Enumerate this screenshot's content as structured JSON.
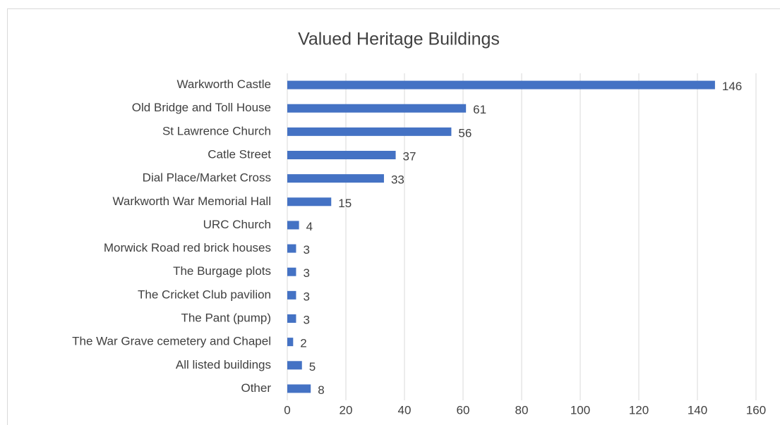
{
  "chart_data": {
    "type": "bar",
    "orientation": "horizontal",
    "title": "Valued Heritage Buildings",
    "categories": [
      "Warkworth Castle",
      "Old Bridge and Toll House",
      "St Lawrence Church",
      "Catle Street",
      "Dial Place/Market Cross",
      "Warkworth War Memorial Hall",
      "URC Church",
      "Morwick Road red brick houses",
      "The Burgage plots",
      "The Cricket Club pavilion",
      "The Pant (pump)",
      "The War Grave cemetery and Chapel",
      "All listed buildings",
      "Other"
    ],
    "values": [
      146,
      61,
      56,
      37,
      33,
      15,
      4,
      3,
      3,
      3,
      3,
      2,
      5,
      8
    ],
    "color": "#4472c4",
    "xlim": [
      0,
      160
    ],
    "xticks": [
      0,
      20,
      40,
      60,
      80,
      100,
      120,
      140,
      160
    ],
    "grid": true
  }
}
